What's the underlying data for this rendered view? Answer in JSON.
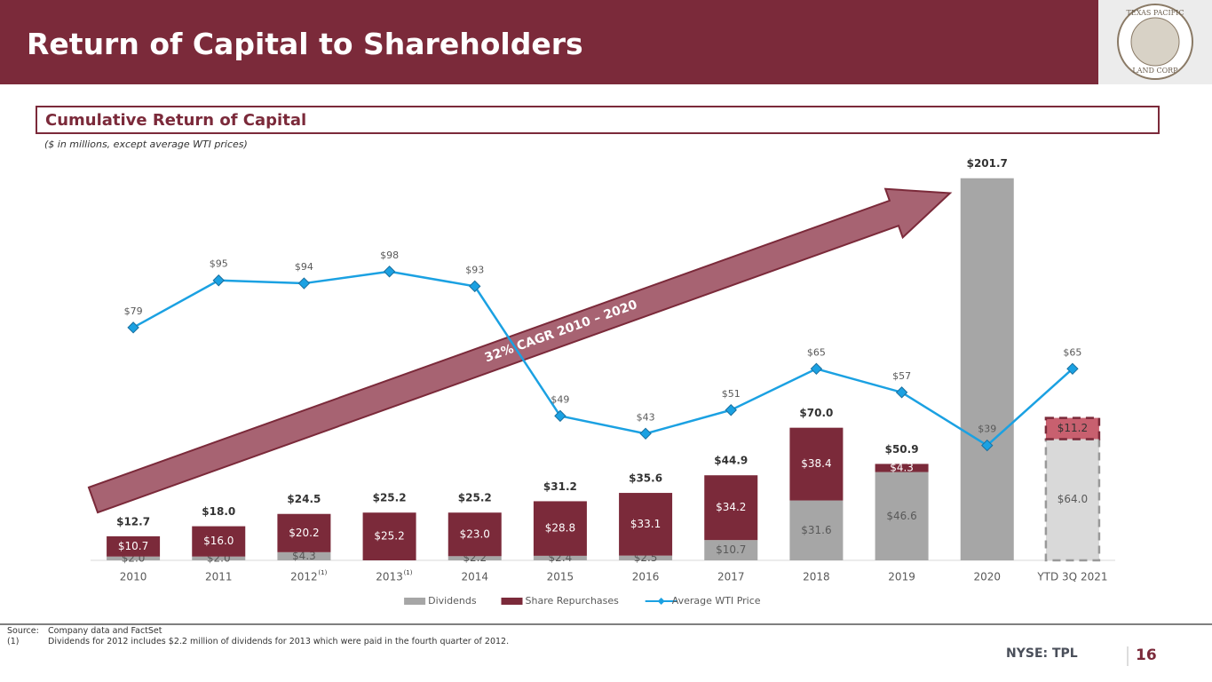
{
  "header": {
    "title": "Return of Capital to Shareholders"
  },
  "logo": {
    "top_text": "TEXAS PACIFIC",
    "bottom_text": "LAND CORP"
  },
  "section": {
    "title": "Cumulative Return of Capital",
    "subtitle": "($ in millions, except average WTI prices)"
  },
  "chart_data": {
    "type": "bar",
    "stacked": true,
    "categories": [
      "2010",
      "2011",
      "2012",
      "2013",
      "2014",
      "2015",
      "2016",
      "2017",
      "2018",
      "2019",
      "2020",
      "YTD 3Q 2021"
    ],
    "category_notes": [
      null,
      null,
      "(1)",
      "(1)",
      null,
      null,
      null,
      null,
      null,
      null,
      null,
      null
    ],
    "series": [
      {
        "name": "Dividends",
        "color": "#a6a6a6",
        "estimate_color": "#d9d9d9",
        "label_color": "#595959",
        "values": [
          2.0,
          2.0,
          4.3,
          null,
          2.2,
          2.4,
          2.5,
          10.7,
          31.6,
          46.6,
          201.7,
          64.0
        ],
        "value_labels": [
          "$2.0",
          "$2.0",
          "$4.3",
          null,
          "$2.2",
          "$2.4",
          "$2.5",
          "$10.7",
          "$31.6",
          "$46.6",
          null,
          "$64.0"
        ]
      },
      {
        "name": "Share Repurchases",
        "color": "#7b2a3a",
        "estimate_color": "#c8606f",
        "label_color": "#ffffff",
        "values": [
          10.7,
          16.0,
          20.2,
          25.2,
          23.0,
          28.8,
          33.1,
          34.2,
          38.4,
          4.3,
          null,
          11.2
        ],
        "value_labels": [
          "$10.7",
          "$16.0",
          "$20.2",
          "$25.2",
          "$23.0",
          "$28.8",
          "$33.1",
          "$34.2",
          "$38.4",
          "$4.3",
          null,
          "$11.2"
        ]
      },
      {
        "name": "Average WTI Price",
        "type": "line",
        "axis": "y2",
        "color": "#1ba1e2",
        "values": [
          79,
          95,
          94,
          98,
          93,
          49,
          43,
          51,
          65,
          57,
          39,
          65
        ],
        "value_labels": [
          "$79",
          "$95",
          "$94",
          "$98",
          "$93",
          "$49",
          "$43",
          "$51",
          "$65",
          "$57",
          "$39",
          "$65"
        ]
      }
    ],
    "totals": {
      "values": [
        12.7,
        18.0,
        24.5,
        25.2,
        25.2,
        31.2,
        35.6,
        44.9,
        70.0,
        50.9,
        201.7,
        null
      ],
      "value_labels": [
        "$12.7",
        "$18.0",
        "$24.5",
        "$25.2",
        "$25.2",
        "$31.2",
        "$35.6",
        "$44.9",
        "$70.0",
        "$50.9",
        "$201.7",
        null
      ]
    },
    "estimate_category": "YTD 3Q 2021",
    "ylim": [
      0,
      210
    ],
    "y2lim": [
      0,
      135
    ],
    "annotation": "32% CAGR 2010 – 2020",
    "legend": "bottom"
  },
  "footer": {
    "source_label": "Source:",
    "source_text": "Company data and FactSet",
    "note_label": "(1)",
    "note_text": "Dividends for 2012 includes $2.2 million of dividends for 2013 which were paid in the fourth quarter of 2012.",
    "ticker": "NYSE: TPL",
    "page_number": "16"
  }
}
